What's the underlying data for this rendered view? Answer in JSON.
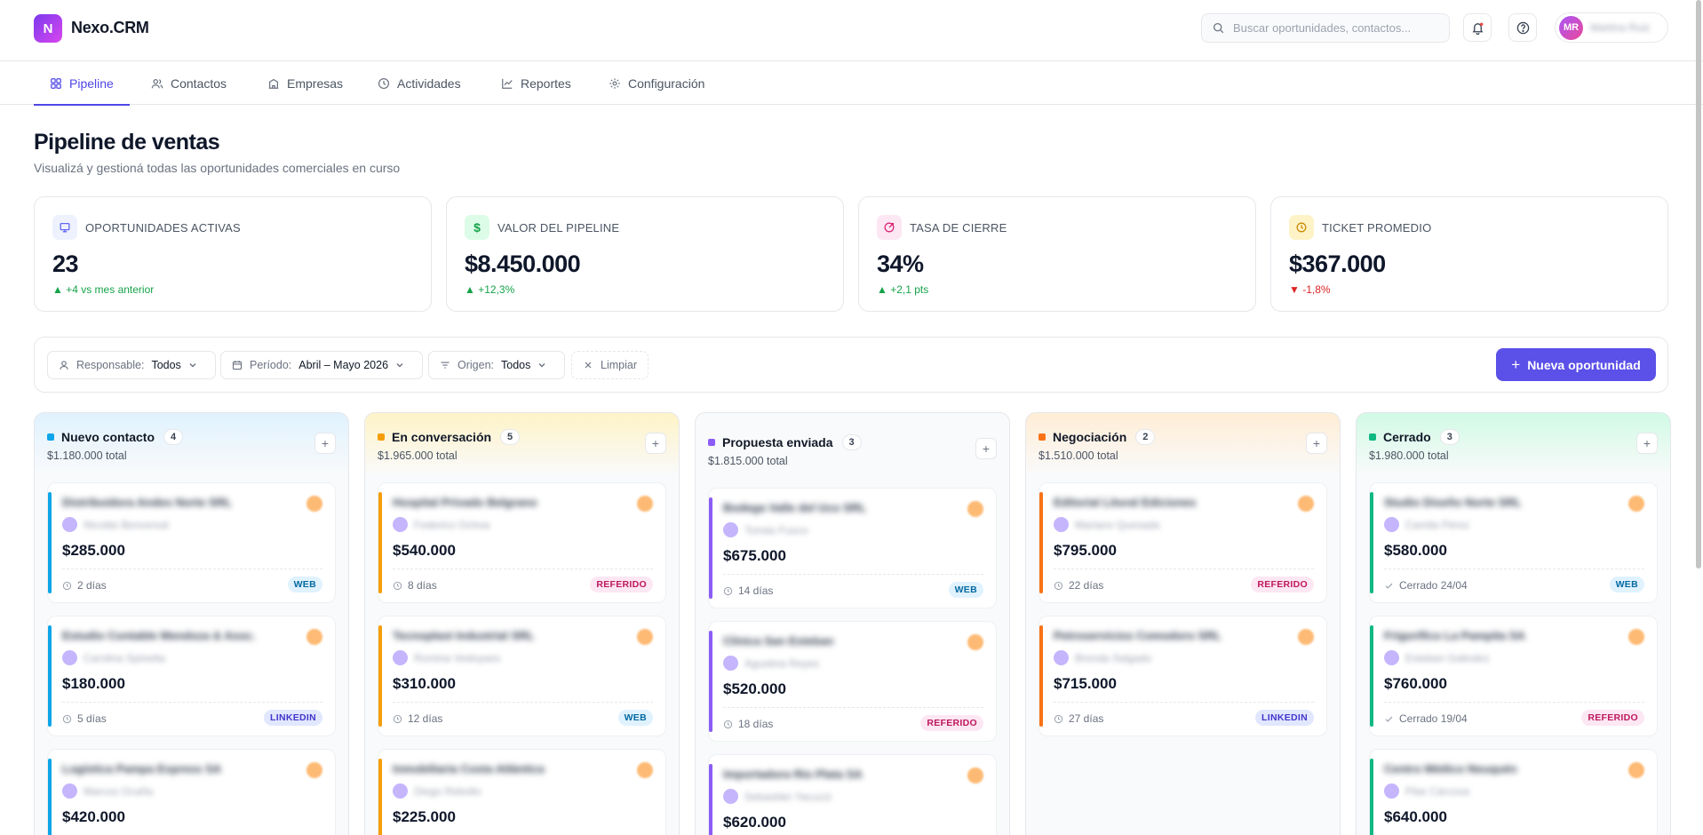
{
  "app": {
    "logo_letter": "N",
    "name": "Nexo.CRM"
  },
  "search": {
    "placeholder": "Buscar oportunidades, contactos..."
  },
  "user": {
    "initials": "MR",
    "name": "Martina Ruiz"
  },
  "nav": [
    {
      "label": "Pipeline",
      "icon": "grid-icon",
      "active": true
    },
    {
      "label": "Contactos",
      "icon": "users-icon"
    },
    {
      "label": "Empresas",
      "icon": "building-icon"
    },
    {
      "label": "Actividades",
      "icon": "clock-icon"
    },
    {
      "label": "Reportes",
      "icon": "chart-line-icon"
    },
    {
      "label": "Configuración",
      "icon": "gear-icon"
    }
  ],
  "page": {
    "title": "Pipeline de ventas",
    "subtitle": "Visualizá y gestioná todas las oportunidades comerciales en curso"
  },
  "kpis": [
    {
      "label": "OPORTUNIDADES ACTIVAS",
      "value": "23",
      "delta": "▲ +4 vs mes anterior",
      "trend": "up",
      "icon": "monitor-icon",
      "color": "#6366f1",
      "bg": "#eef2ff"
    },
    {
      "label": "VALOR DEL PIPELINE",
      "value": "$8.450.000",
      "delta": "▲ +12,3%",
      "trend": "up",
      "icon": "dollar-icon",
      "color": "#16a34a",
      "bg": "#dcfce7"
    },
    {
      "label": "TASA DE CIERRE",
      "value": "34%",
      "delta": "▲ +2,1 pts",
      "trend": "up",
      "icon": "target-icon",
      "color": "#db2777",
      "bg": "#fce7f3"
    },
    {
      "label": "TICKET PROMEDIO",
      "value": "$367.000",
      "delta": "▼ -1,8%",
      "trend": "down",
      "icon": "clock-icon",
      "color": "#ca8a04",
      "bg": "#fef3c7"
    }
  ],
  "filters": {
    "responsable": {
      "label": "Responsable:",
      "value": "Todos"
    },
    "periodo": {
      "label": "Período:",
      "value": "Abril – Mayo 2026"
    },
    "origen": {
      "label": "Origen:",
      "value": "Todos"
    },
    "clear": "Limpiar",
    "new_button": "Nueva oportunidad"
  },
  "columns": [
    {
      "name": "Nuevo contacto",
      "count": "4",
      "total": "$1.180.000 total",
      "color": "#0ea5e9",
      "tint": "#e0f2fe",
      "cards": [
        {
          "company": "Distribuidora Andes Norte SRL",
          "contact": "Nicolás Benvenuti",
          "amount": "$285.000",
          "meta": "2 días",
          "meta_icon": "clock-icon",
          "tag": "WEB"
        },
        {
          "company": "Estudio Contable Mendoza & Asoc.",
          "contact": "Carolina Spinetta",
          "amount": "$180.000",
          "meta": "5 días",
          "meta_icon": "clock-icon",
          "tag": "LINKEDIN"
        },
        {
          "company": "Logística Pampa Express SA",
          "contact": "Marcos Ocaña",
          "amount": "$420.000",
          "meta": "",
          "meta_icon": "clock-icon",
          "tag": ""
        }
      ]
    },
    {
      "name": "En conversación",
      "count": "5",
      "total": "$1.965.000 total",
      "color": "#f59e0b",
      "tint": "#fef3c7",
      "cards": [
        {
          "company": "Hospital Privado Belgrano",
          "contact": "Federico Ochoa",
          "amount": "$540.000",
          "meta": "8 días",
          "meta_icon": "clock-icon",
          "tag": "REFERIDO"
        },
        {
          "company": "Tecnoplast Industrial SRL",
          "contact": "Romina Vedoyaes",
          "amount": "$310.000",
          "meta": "12 días",
          "meta_icon": "clock-icon",
          "tag": "WEB"
        },
        {
          "company": "Inmobiliaria Costa Atlántica",
          "contact": "Diego Rebollo",
          "amount": "$225.000",
          "meta": "",
          "meta_icon": "clock-icon",
          "tag": ""
        }
      ]
    },
    {
      "name": "Propuesta enviada",
      "count": "3",
      "total": "$1.815.000 total",
      "color": "#8b5cf6",
      "tint": "#f9fafb",
      "cards": [
        {
          "company": "Bodega Valle del Uco SRL",
          "contact": "Tomás Fusco",
          "amount": "$675.000",
          "meta": "14 días",
          "meta_icon": "clock-icon",
          "tag": "WEB"
        },
        {
          "company": "Clínica San Esteban",
          "contact": "Agustina Reyes",
          "amount": "$520.000",
          "meta": "18 días",
          "meta_icon": "clock-icon",
          "tag": "REFERIDO"
        },
        {
          "company": "Importadora Río Plata SA",
          "contact": "Sebastián Yacuzzi",
          "amount": "$620.000",
          "meta": "",
          "meta_icon": "clock-icon",
          "tag": ""
        }
      ]
    },
    {
      "name": "Negociación",
      "count": "2",
      "total": "$1.510.000 total",
      "color": "#f97316",
      "tint": "#ffedd5",
      "cards": [
        {
          "company": "Editorial Litoral Ediciones",
          "contact": "Mariano Quesada",
          "amount": "$795.000",
          "meta": "22 días",
          "meta_icon": "clock-icon",
          "tag": "REFERIDO"
        },
        {
          "company": "Petroservicios Comodoro SRL",
          "contact": "Brenda Salgado",
          "amount": "$715.000",
          "meta": "27 días",
          "meta_icon": "clock-icon",
          "tag": "LINKEDIN"
        }
      ]
    },
    {
      "name": "Cerrado",
      "count": "3",
      "total": "$1.980.000 total",
      "color": "#10b981",
      "tint": "#d1fae5",
      "cards": [
        {
          "company": "Studio Diseño Norte SRL",
          "contact": "Camila Pérez",
          "amount": "$580.000",
          "meta": "Cerrado 24/04",
          "meta_icon": "check-icon",
          "tag": "WEB"
        },
        {
          "company": "Frigorífico La Pampita SA",
          "contact": "Esteban Galindez",
          "amount": "$760.000",
          "meta": "Cerrado 19/04",
          "meta_icon": "check-icon",
          "tag": "REFERIDO"
        },
        {
          "company": "Centro Médico Neuquén",
          "contact": "Pilar Cárcova",
          "amount": "$640.000",
          "meta": "",
          "meta_icon": "check-icon",
          "tag": ""
        }
      ]
    }
  ]
}
